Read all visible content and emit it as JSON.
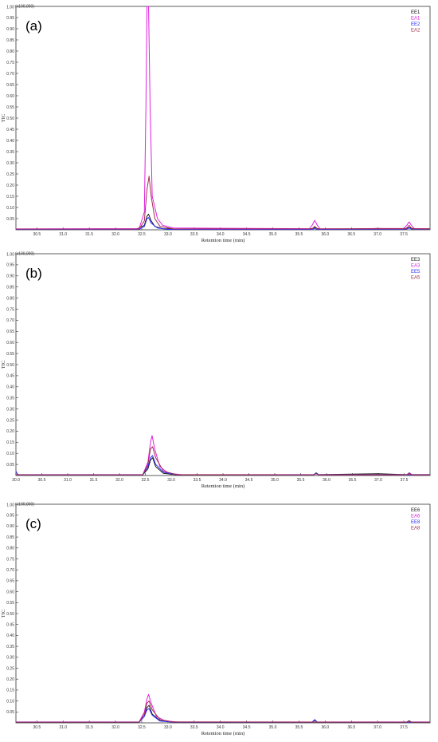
{
  "chart_data": [
    {
      "type": "line",
      "panel_label": "(a)",
      "ylabel": "TIC",
      "xlabel": "Retention time (min)",
      "y_multiplier": "(x100,000)",
      "xlim": [
        30.1,
        38.0
      ],
      "ylim": [
        0,
        1.0
      ],
      "x_ticks": [
        30.5,
        31.0,
        31.5,
        32.0,
        32.5,
        33.0,
        33.5,
        34.0,
        34.5,
        35.0,
        35.5,
        36.0,
        36.5,
        37.0,
        37.5
      ],
      "y_ticks": [
        0.05,
        0.1,
        0.15,
        0.2,
        0.25,
        0.3,
        0.35,
        0.4,
        0.45,
        0.5,
        0.55,
        0.6,
        0.65,
        0.7,
        0.75,
        0.8,
        0.85,
        0.9,
        0.95
      ],
      "top_tick_label": "1.00",
      "legend_position": "top-right",
      "series": [
        {
          "name": "EE1",
          "color": "#1a1a1a",
          "x": [
            30.1,
            32.4,
            32.55,
            32.6,
            32.63,
            32.68,
            32.75,
            32.9,
            33.2,
            35.7,
            35.75,
            35.8,
            35.85,
            35.9,
            36.5,
            37.0,
            37.5,
            37.55,
            37.6,
            37.65,
            37.7,
            38.0
          ],
          "values": [
            0.003,
            0.003,
            0.02,
            0.06,
            0.07,
            0.04,
            0.015,
            0.005,
            0.003,
            0.003,
            0.006,
            0.01,
            0.006,
            0.003,
            0.004,
            0.006,
            0.004,
            0.007,
            0.01,
            0.007,
            0.004,
            0.004
          ]
        },
        {
          "name": "EA1",
          "color": "#e020e0",
          "x": [
            30.1,
            32.45,
            32.55,
            32.58,
            32.6,
            32.63,
            32.66,
            32.7,
            32.8,
            32.9,
            33.1,
            35.7,
            35.75,
            35.8,
            35.85,
            35.9,
            36.5,
            37.0,
            37.5,
            37.55,
            37.6,
            37.65,
            37.7,
            38.0
          ],
          "values": [
            0.004,
            0.005,
            0.08,
            0.55,
            1.0,
            1.0,
            0.55,
            0.15,
            0.05,
            0.02,
            0.008,
            0.005,
            0.02,
            0.042,
            0.02,
            0.005,
            0.004,
            0.006,
            0.006,
            0.018,
            0.035,
            0.018,
            0.006,
            0.005
          ]
        },
        {
          "name": "EE2",
          "color": "#2a2aff",
          "x": [
            30.1,
            32.45,
            32.55,
            32.6,
            32.63,
            32.68,
            32.8,
            33.0,
            35.75,
            35.8,
            35.85,
            37.55,
            37.6,
            37.65,
            38.0
          ],
          "values": [
            0.002,
            0.002,
            0.015,
            0.05,
            0.055,
            0.03,
            0.008,
            0.002,
            0.002,
            0.006,
            0.002,
            0.003,
            0.008,
            0.003,
            0.003
          ]
        },
        {
          "name": "EA2",
          "color": "#a03050",
          "x": [
            30.1,
            32.45,
            32.55,
            32.6,
            32.64,
            32.68,
            32.75,
            32.85,
            33.1,
            35.75,
            35.8,
            35.85,
            37.55,
            37.6,
            37.65,
            38.0
          ],
          "values": [
            0.003,
            0.003,
            0.04,
            0.18,
            0.24,
            0.15,
            0.05,
            0.015,
            0.004,
            0.004,
            0.015,
            0.004,
            0.005,
            0.02,
            0.005,
            0.004
          ]
        }
      ]
    },
    {
      "type": "line",
      "panel_label": "(b)",
      "ylabel": "TIC",
      "xlabel": "Retention time (min)",
      "y_multiplier": "(x100,000)",
      "xlim": [
        30.0,
        38.0
      ],
      "ylim": [
        0,
        1.0
      ],
      "x_ticks": [
        30.0,
        30.5,
        31.0,
        31.5,
        32.0,
        32.5,
        33.0,
        33.5,
        34.0,
        34.5,
        35.0,
        35.5,
        36.0,
        36.5,
        37.0,
        37.5
      ],
      "y_ticks": [
        0.05,
        0.1,
        0.15,
        0.2,
        0.25,
        0.3,
        0.35,
        0.4,
        0.45,
        0.5,
        0.55,
        0.6,
        0.65,
        0.7,
        0.75,
        0.8,
        0.85,
        0.9,
        0.95
      ],
      "top_tick_label": "1.00",
      "legend_position": "top-right",
      "series": [
        {
          "name": "EE3",
          "color": "#1a1a1a",
          "x": [
            30.0,
            32.45,
            32.55,
            32.6,
            32.64,
            32.7,
            32.85,
            33.1,
            35.75,
            35.8,
            35.85,
            37.0,
            37.55,
            37.6,
            37.65,
            38.0
          ],
          "values": [
            0.003,
            0.003,
            0.03,
            0.07,
            0.08,
            0.04,
            0.01,
            0.003,
            0.003,
            0.012,
            0.004,
            0.008,
            0.004,
            0.012,
            0.004,
            0.004
          ]
        },
        {
          "name": "EA3",
          "color": "#e020e0",
          "x": [
            30.0,
            32.45,
            32.55,
            32.6,
            32.63,
            32.68,
            32.78,
            32.95,
            33.2,
            35.75,
            35.8,
            35.85,
            37.55,
            37.6,
            37.65,
            38.0
          ],
          "values": [
            0.004,
            0.004,
            0.06,
            0.15,
            0.18,
            0.12,
            0.04,
            0.01,
            0.004,
            0.004,
            0.008,
            0.004,
            0.004,
            0.01,
            0.004,
            0.004
          ]
        },
        {
          "name": "EE5",
          "color": "#2a2aff",
          "x": [
            30.0,
            30.02,
            30.05,
            32.45,
            32.55,
            32.6,
            32.64,
            32.7,
            32.85,
            33.1,
            35.75,
            35.8,
            35.85,
            38.0
          ],
          "values": [
            0.02,
            0.01,
            0.003,
            0.003,
            0.04,
            0.08,
            0.09,
            0.05,
            0.015,
            0.004,
            0.003,
            0.01,
            0.003,
            0.003
          ]
        },
        {
          "name": "EA5",
          "color": "#a03050",
          "x": [
            30.0,
            32.45,
            32.55,
            32.6,
            32.64,
            32.7,
            32.85,
            33.1,
            35.75,
            35.8,
            35.85,
            37.55,
            37.6,
            37.65,
            38.0
          ],
          "values": [
            0.003,
            0.003,
            0.05,
            0.12,
            0.13,
            0.08,
            0.02,
            0.004,
            0.003,
            0.008,
            0.003,
            0.003,
            0.008,
            0.003,
            0.003
          ]
        }
      ]
    },
    {
      "type": "line",
      "panel_label": "(c)",
      "ylabel": "TIC",
      "xlabel": "Retention time (min)",
      "y_multiplier": "(x100,000)",
      "xlim": [
        30.1,
        38.0
      ],
      "ylim": [
        0,
        1.0
      ],
      "x_ticks": [
        30.5,
        31.0,
        31.5,
        32.0,
        32.5,
        33.0,
        33.5,
        34.0,
        34.5,
        35.0,
        35.5,
        36.0,
        36.5,
        37.0,
        37.5
      ],
      "y_ticks": [
        0.05,
        0.1,
        0.15,
        0.2,
        0.25,
        0.3,
        0.35,
        0.4,
        0.45,
        0.5,
        0.55,
        0.6,
        0.65,
        0.7,
        0.75,
        0.8,
        0.85,
        0.9,
        0.95
      ],
      "top_tick_label": "1.00",
      "legend_position": "top-right",
      "series": [
        {
          "name": "EE6",
          "color": "#1a1a1a",
          "x": [
            30.1,
            32.45,
            32.55,
            32.6,
            32.64,
            32.7,
            32.85,
            33.1,
            35.75,
            35.8,
            35.85,
            37.55,
            37.6,
            37.65,
            38.0
          ],
          "values": [
            0.003,
            0.003,
            0.03,
            0.07,
            0.08,
            0.04,
            0.01,
            0.003,
            0.003,
            0.012,
            0.003,
            0.003,
            0.01,
            0.003,
            0.003
          ]
        },
        {
          "name": "EA6",
          "color": "#e020e0",
          "x": [
            30.1,
            32.45,
            32.55,
            32.6,
            32.63,
            32.68,
            32.78,
            32.95,
            33.2,
            38.0
          ],
          "values": [
            0.004,
            0.004,
            0.05,
            0.11,
            0.13,
            0.09,
            0.03,
            0.008,
            0.004,
            0.004
          ]
        },
        {
          "name": "EE8",
          "color": "#2a2aff",
          "x": [
            30.1,
            32.45,
            32.55,
            32.6,
            32.64,
            32.7,
            32.85,
            33.1,
            35.75,
            35.8,
            35.85,
            38.0
          ],
          "values": [
            0.003,
            0.003,
            0.03,
            0.06,
            0.065,
            0.035,
            0.008,
            0.003,
            0.003,
            0.015,
            0.003,
            0.003
          ]
        },
        {
          "name": "EA8",
          "color": "#a03050",
          "x": [
            30.1,
            32.45,
            32.55,
            32.6,
            32.64,
            32.7,
            32.85,
            33.1,
            37.55,
            37.6,
            37.65,
            38.0
          ],
          "values": [
            0.003,
            0.003,
            0.04,
            0.09,
            0.1,
            0.06,
            0.015,
            0.004,
            0.003,
            0.008,
            0.003,
            0.003
          ]
        }
      ]
    }
  ]
}
